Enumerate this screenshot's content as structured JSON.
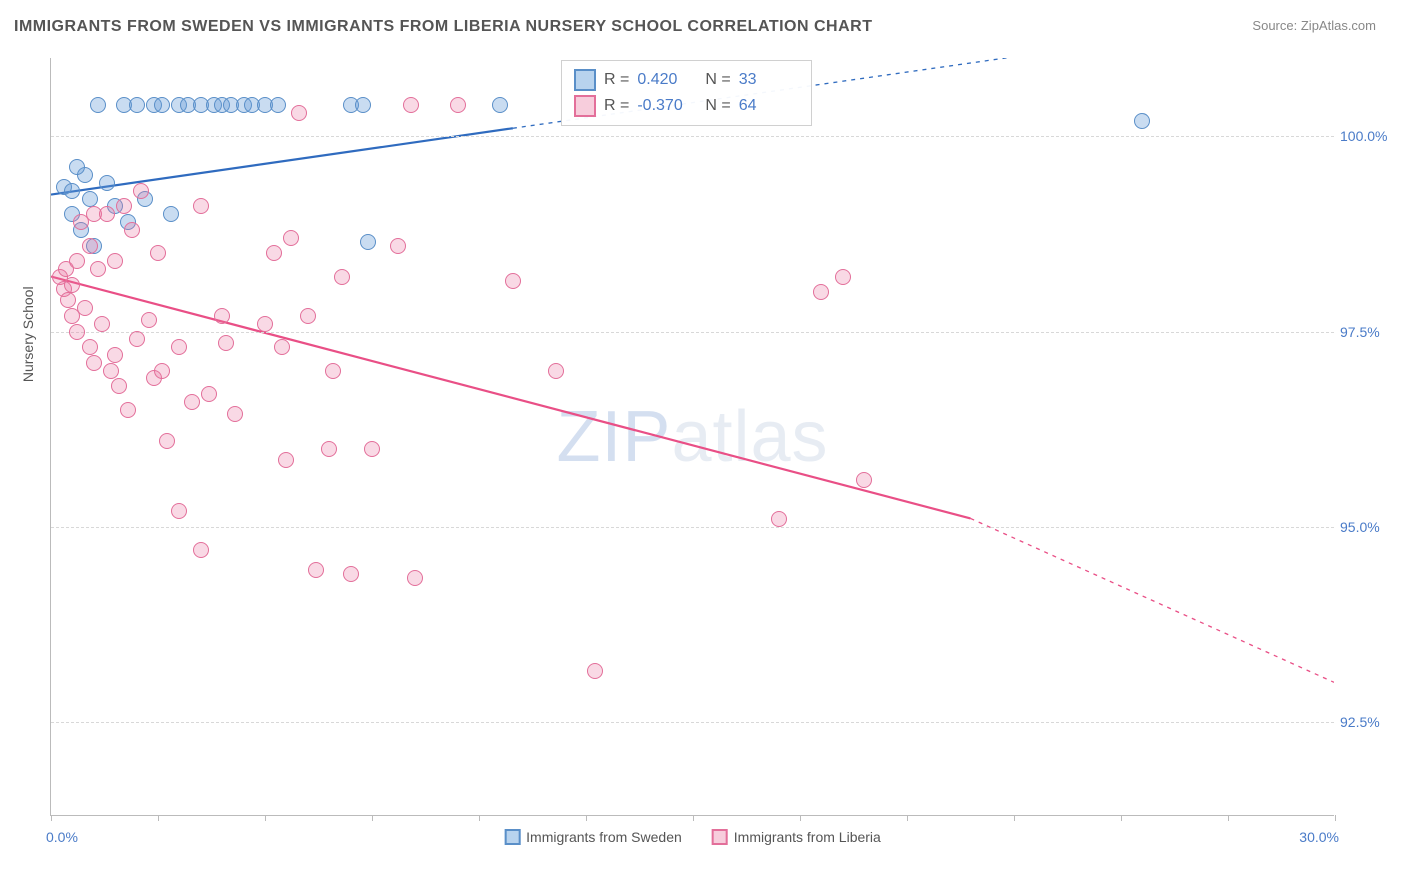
{
  "title": "IMMIGRANTS FROM SWEDEN VS IMMIGRANTS FROM LIBERIA NURSERY SCHOOL CORRELATION CHART",
  "source_label": "Source:",
  "source_name": "ZipAtlas.com",
  "y_axis_title": "Nursery School",
  "watermark_a": "ZIP",
  "watermark_b": "atlas",
  "chart": {
    "type": "scatter",
    "background_color": "#ffffff",
    "grid_color": "#d8d8d8",
    "axis_color": "#bbbbbb",
    "xlim": [
      0,
      30
    ],
    "ylim": [
      91.3,
      101.0
    ],
    "x_ticks": [
      0,
      2.5,
      5,
      7.5,
      10,
      12.5,
      15,
      17.5,
      20,
      22.5,
      25,
      27.5,
      30
    ],
    "x_tick_labels_visible": [
      "0.0%",
      "30.0%"
    ],
    "y_gridlines": [
      92.5,
      95.0,
      97.5,
      100.0
    ],
    "y_tick_labels": [
      "92.5%",
      "95.0%",
      "97.5%",
      "100.0%"
    ],
    "marker_radius": 8,
    "marker_stroke_width": 1.6,
    "label_fontsize": 14,
    "tick_label_color": "#4a7bc8",
    "title_fontsize": 16,
    "title_color": "#555555"
  },
  "series": [
    {
      "name": "Immigrants from Sweden",
      "color_fill": "rgba(99,155,215,0.35)",
      "color_stroke": "#5a8fc8",
      "legend_swatch_fill": "#b8d3ee",
      "legend_swatch_stroke": "#5a8fc8",
      "r_value": "0.420",
      "n_value": "33",
      "trend": {
        "x1": 0,
        "y1": 99.25,
        "x2": 10.8,
        "y2": 100.1,
        "dash_after_x": 10.8,
        "x_end": 30,
        "y_end": 101.6,
        "color": "#2f6bbf",
        "width": 2.2
      },
      "points": [
        [
          0.3,
          99.35
        ],
        [
          0.5,
          99.3
        ],
        [
          0.5,
          99.0
        ],
        [
          0.7,
          98.8
        ],
        [
          0.8,
          99.5
        ],
        [
          0.9,
          99.2
        ],
        [
          1.0,
          98.6
        ],
        [
          1.1,
          100.4
        ],
        [
          1.3,
          99.4
        ],
        [
          1.5,
          99.1
        ],
        [
          1.7,
          100.4
        ],
        [
          1.8,
          98.9
        ],
        [
          2.0,
          100.4
        ],
        [
          2.2,
          99.2
        ],
        [
          2.4,
          100.4
        ],
        [
          2.6,
          100.4
        ],
        [
          2.8,
          99.0
        ],
        [
          3.0,
          100.4
        ],
        [
          3.2,
          100.4
        ],
        [
          3.5,
          100.4
        ],
        [
          3.8,
          100.4
        ],
        [
          4.0,
          100.4
        ],
        [
          4.2,
          100.4
        ],
        [
          4.5,
          100.4
        ],
        [
          4.7,
          100.4
        ],
        [
          5.0,
          100.4
        ],
        [
          5.3,
          100.4
        ],
        [
          7.0,
          100.4
        ],
        [
          7.3,
          100.4
        ],
        [
          7.4,
          98.65
        ],
        [
          10.5,
          100.4
        ],
        [
          25.5,
          100.2
        ],
        [
          0.6,
          99.6
        ]
      ]
    },
    {
      "name": "Immigrants from Liberia",
      "color_fill": "rgba(235,120,160,0.28)",
      "color_stroke": "#e36f9a",
      "legend_swatch_fill": "#f7cddc",
      "legend_swatch_stroke": "#e36f9a",
      "r_value": "-0.370",
      "n_value": "64",
      "trend": {
        "x1": 0,
        "y1": 98.2,
        "x2": 21.5,
        "y2": 95.1,
        "dash_after_x": 21.5,
        "x_end": 30,
        "y_end": 93.0,
        "color": "#e94f86",
        "width": 2.2
      },
      "points": [
        [
          0.2,
          98.2
        ],
        [
          0.3,
          98.05
        ],
        [
          0.35,
          98.3
        ],
        [
          0.4,
          97.9
        ],
        [
          0.5,
          98.1
        ],
        [
          0.5,
          97.7
        ],
        [
          0.6,
          97.5
        ],
        [
          0.6,
          98.4
        ],
        [
          0.7,
          98.9
        ],
        [
          0.8,
          97.8
        ],
        [
          0.9,
          97.3
        ],
        [
          0.9,
          98.6
        ],
        [
          1.0,
          99.0
        ],
        [
          1.0,
          97.1
        ],
        [
          1.1,
          98.3
        ],
        [
          1.2,
          97.6
        ],
        [
          1.3,
          99.0
        ],
        [
          1.4,
          97.0
        ],
        [
          1.5,
          98.4
        ],
        [
          1.5,
          97.2
        ],
        [
          1.6,
          96.8
        ],
        [
          1.7,
          99.1
        ],
        [
          1.8,
          96.5
        ],
        [
          1.9,
          98.8
        ],
        [
          2.0,
          97.4
        ],
        [
          2.1,
          99.3
        ],
        [
          2.3,
          97.65
        ],
        [
          2.4,
          96.9
        ],
        [
          2.5,
          98.5
        ],
        [
          2.6,
          97.0
        ],
        [
          2.7,
          96.1
        ],
        [
          3.0,
          95.2
        ],
        [
          3.0,
          97.3
        ],
        [
          3.3,
          96.6
        ],
        [
          3.5,
          94.7
        ],
        [
          3.5,
          99.1
        ],
        [
          3.7,
          96.7
        ],
        [
          4.0,
          97.7
        ],
        [
          4.1,
          97.35
        ],
        [
          4.3,
          96.45
        ],
        [
          5.0,
          97.6
        ],
        [
          5.2,
          98.5
        ],
        [
          5.4,
          97.3
        ],
        [
          5.5,
          95.85
        ],
        [
          5.6,
          98.7
        ],
        [
          5.8,
          100.3
        ],
        [
          6.0,
          97.7
        ],
        [
          6.2,
          94.45
        ],
        [
          6.5,
          96.0
        ],
        [
          6.6,
          97.0
        ],
        [
          6.8,
          98.2
        ],
        [
          7.0,
          94.4
        ],
        [
          7.5,
          96.0
        ],
        [
          8.1,
          98.6
        ],
        [
          8.4,
          100.4
        ],
        [
          8.5,
          94.35
        ],
        [
          9.5,
          100.4
        ],
        [
          10.8,
          98.15
        ],
        [
          11.8,
          97.0
        ],
        [
          12.7,
          93.15
        ],
        [
          17.0,
          95.1
        ],
        [
          18.0,
          98.0
        ],
        [
          18.5,
          98.2
        ],
        [
          19.0,
          95.6
        ]
      ]
    }
  ],
  "stats_legend": {
    "r_label": "R =",
    "n_label": "N ="
  },
  "bottom_legend": [
    {
      "label": "Immigrants from Sweden",
      "fill": "#b8d3ee",
      "stroke": "#5a8fc8"
    },
    {
      "label": "Immigrants from Liberia",
      "fill": "#f7cddc",
      "stroke": "#e36f9a"
    }
  ]
}
